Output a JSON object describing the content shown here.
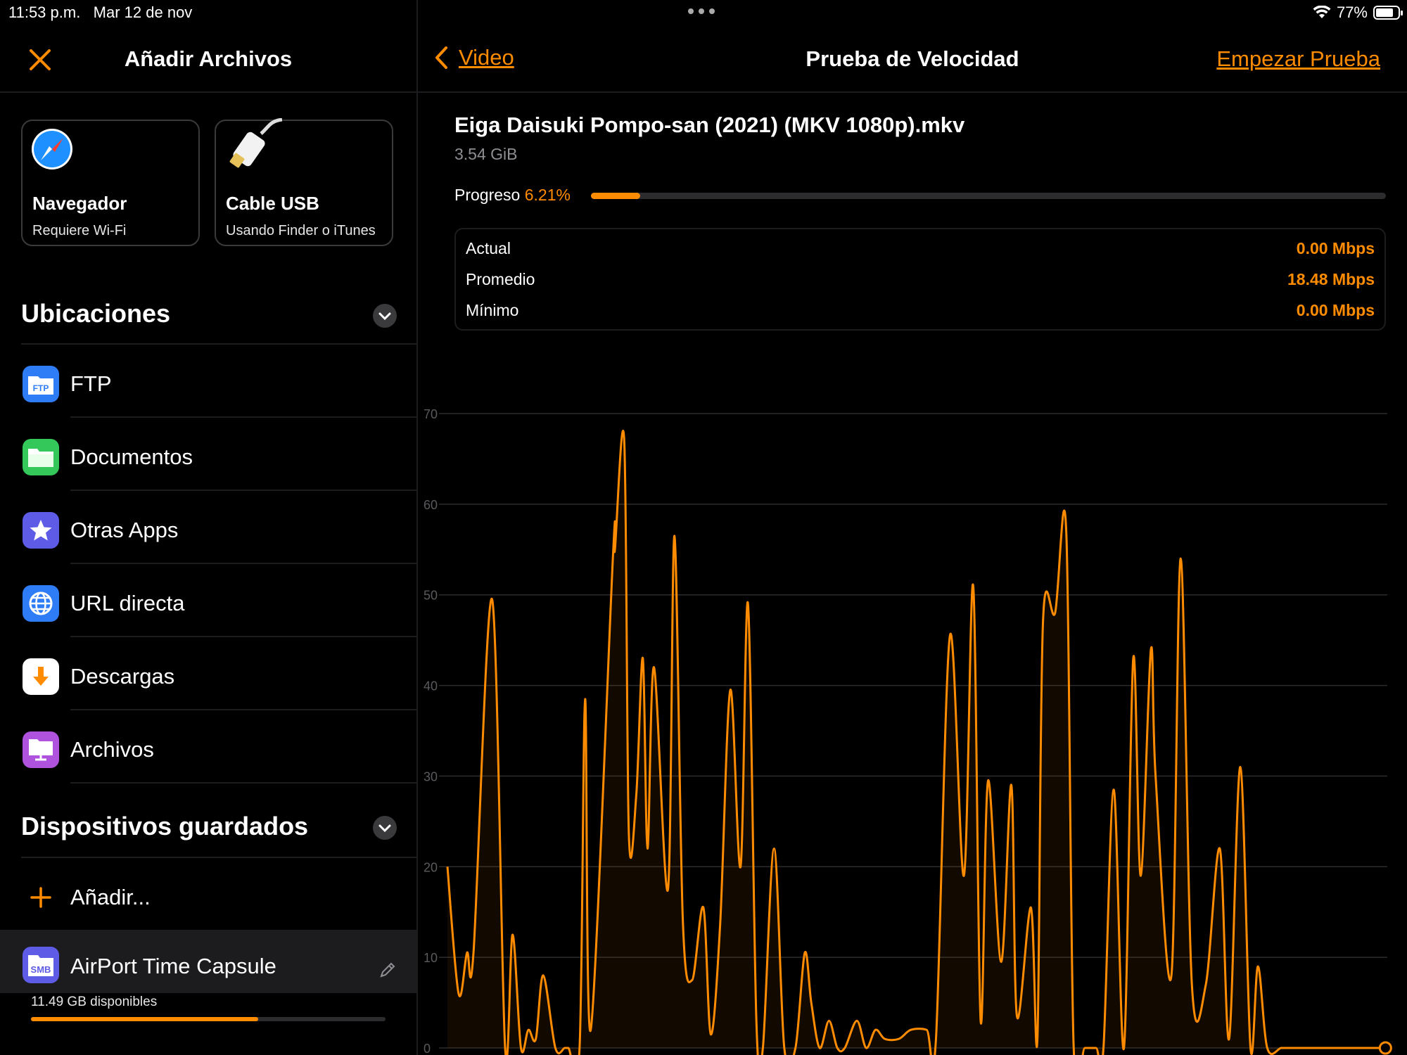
{
  "status_bar": {
    "time": "11:53 p.m.",
    "date": "Mar 12 de nov",
    "battery": "77%",
    "battery_level": 0.77
  },
  "left_panel": {
    "title": "Añadir Archivos",
    "cards": [
      {
        "title": "Navegador",
        "subtitle": "Requiere Wi-Fi",
        "icon": "compass-icon"
      },
      {
        "title": "Cable USB",
        "subtitle": "Usando Finder o iTunes",
        "icon": "usb-cable-icon"
      }
    ],
    "locations_title": "Ubicaciones",
    "locations": [
      {
        "label": "FTP",
        "icon": "ftp-icon",
        "color": "#2f7df6"
      },
      {
        "label": "Documentos",
        "icon": "folder-icon",
        "color": "#34c759"
      },
      {
        "label": "Otras Apps",
        "icon": "star-icon",
        "color": "#5e5ce6"
      },
      {
        "label": "URL directa",
        "icon": "globe-icon",
        "color": "#2f7df6"
      },
      {
        "label": "Descargas",
        "icon": "download-icon",
        "color": "#ffffff"
      },
      {
        "label": "Archivos",
        "icon": "files-icon",
        "color": "#af52de"
      }
    ],
    "saved_title": "Dispositivos guardados",
    "add_label": "Añadir...",
    "device": {
      "name": "AirPort Time Capsule",
      "badge": "SMB",
      "available": "11.49 GB disponibles",
      "used_fraction": 0.64
    }
  },
  "right_panel": {
    "back_label": "Video",
    "title": "Prueba de Velocidad",
    "action_label": "Empezar Prueba",
    "file_name": "Eiga Daisuki Pompo-san (2021) (MKV 1080p).mkv",
    "file_size": "3.54 GiB",
    "progress_label": "Progreso",
    "progress_text": "6.21%",
    "progress_fraction": 0.0621,
    "stats": [
      {
        "label": "Actual",
        "value": "0.00 Mbps"
      },
      {
        "label": "Promedio",
        "value": "18.48 Mbps"
      },
      {
        "label": "Mínimo",
        "value": "0.00 Mbps"
      }
    ]
  },
  "colors": {
    "accent": "#ff8c00",
    "background": "#000000"
  },
  "chart_data": {
    "type": "line",
    "xlim": [
      0,
      101
    ],
    "ylim": [
      0,
      70
    ],
    "x_ticks": [
      20,
      40,
      60,
      80,
      100
    ],
    "y_ticks": [
      0,
      10,
      20,
      30,
      40,
      50,
      60,
      70
    ],
    "grid": "horizontal",
    "series": [
      {
        "x": [
          0,
          1.2,
          2.1,
          2.8,
          4.8,
          6.2,
          7,
          7.9,
          8.7,
          9.5,
          10.3,
          11.6,
          12.6,
          13,
          14.2,
          14.8,
          15.4,
          17.8,
          18,
          19,
          19.5,
          20.3,
          21,
          21.5,
          22.2,
          23.7,
          24.4,
          25.3,
          26.3,
          27.5,
          28.3,
          29.3,
          30.4,
          31.5,
          32.3,
          33.2,
          33.9,
          35.1,
          36.2,
          37.4,
          38.4,
          39.1,
          40,
          41,
          41.9,
          42.7,
          44,
          45,
          46,
          47,
          48.5,
          49.8,
          51.5,
          52.5,
          54,
          55.5,
          56.5,
          57.3,
          58.1,
          59.5,
          60.6,
          61.2,
          62.7,
          63.4,
          64,
          65.3,
          66.5,
          67.3,
          68.5,
          69.7,
          70.5,
          71.6,
          72.7,
          73.7,
          74.5,
          75.6,
          76.1,
          77.8,
          78.8,
          80,
          81.5,
          83,
          84,
          85.2,
          86.3,
          87.1,
          88.1,
          89.6,
          90.5,
          91.5,
          92,
          93.3,
          93.8,
          94.5,
          95.4,
          96,
          96.8,
          98.5,
          99.5,
          100.8
        ],
        "y": [
          20,
          6,
          10.5,
          10.5,
          49.5,
          0,
          12.5,
          0,
          2,
          1,
          8,
          0,
          0,
          0,
          0,
          38.5,
          2,
          54.5,
          55,
          67,
          23.5,
          28,
          43,
          22,
          42,
          17.5,
          56.5,
          14,
          7.5,
          15.5,
          1.5,
          13.5,
          39.5,
          20,
          49,
          3,
          0,
          22,
          0,
          0,
          10.5,
          5,
          0,
          3,
          0,
          0,
          3,
          0,
          2,
          1,
          1,
          2,
          2,
          1,
          45.5,
          19,
          51,
          3,
          29.5,
          9.5,
          29,
          3.5,
          15.5,
          1,
          47,
          48,
          57,
          0,
          0,
          0,
          0,
          28.5,
          0,
          43,
          19,
          44,
          30,
          8,
          54,
          7,
          7,
          22,
          1,
          31,
          0,
          9,
          0,
          0,
          0,
          0,
          0,
          0,
          0,
          0,
          0,
          0,
          0,
          0,
          0,
          0
        ]
      }
    ]
  }
}
